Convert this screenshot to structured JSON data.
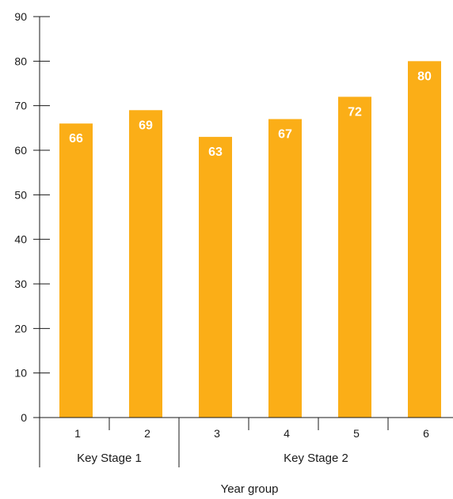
{
  "chart_data": {
    "type": "bar",
    "categories": [
      "1",
      "2",
      "3",
      "4",
      "5",
      "6"
    ],
    "values": [
      66,
      69,
      63,
      67,
      72,
      80
    ],
    "data_labels": [
      "66",
      "69",
      "63",
      "67",
      "72",
      "80"
    ],
    "groups": [
      {
        "label": "Key Stage 1",
        "categories": [
          "1",
          "2"
        ]
      },
      {
        "label": "Key Stage 2",
        "categories": [
          "3",
          "4",
          "5",
          "6"
        ]
      }
    ],
    "title": "",
    "xlabel": "Year group",
    "ylabel": "",
    "ylim": [
      0,
      90
    ],
    "yticks": [
      "0",
      "10",
      "20",
      "30",
      "40",
      "50",
      "60",
      "70",
      "80",
      "90"
    ],
    "grid": false,
    "legend": "none",
    "bar_color": "#FBAE17",
    "data_label_color": "#FFFFFF",
    "axis_color": "#1A1A1A"
  }
}
